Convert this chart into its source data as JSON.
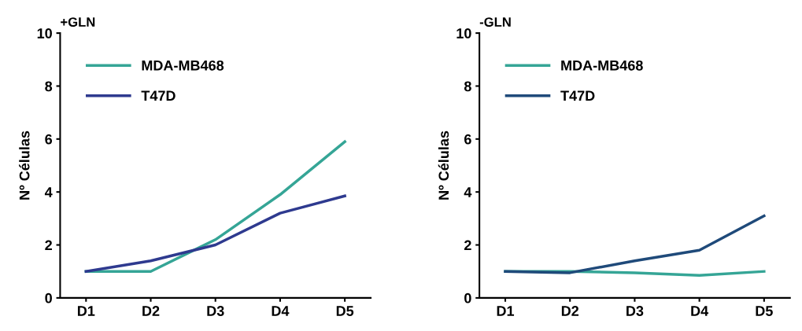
{
  "chart_data": [
    {
      "type": "line",
      "title": "+GLN",
      "ylabel": "Nº Células",
      "categories": [
        "D1",
        "D2",
        "D3",
        "D4",
        "D5"
      ],
      "ylim": [
        0,
        10
      ],
      "yticks": [
        0,
        2,
        4,
        6,
        8,
        10
      ],
      "grid": false,
      "legend": "top left",
      "series": [
        {
          "name": "MDA-MB468",
          "color": "#35a596",
          "values": [
            1.0,
            1.0,
            2.2,
            3.9,
            5.9
          ]
        },
        {
          "name": "T47D",
          "color": "#2e3a8f",
          "values": [
            1.0,
            1.4,
            2.0,
            3.2,
            3.85
          ]
        }
      ]
    },
    {
      "type": "line",
      "title": "-GLN",
      "ylabel": "Nº Células",
      "categories": [
        "D1",
        "D2",
        "D3",
        "D4",
        "D5"
      ],
      "ylim": [
        0,
        10
      ],
      "yticks": [
        0,
        2,
        4,
        6,
        8,
        10
      ],
      "grid": false,
      "legend": "top left",
      "series": [
        {
          "name": "MDA-MB468",
          "color": "#35a596",
          "values": [
            1.0,
            1.0,
            0.95,
            0.85,
            1.0
          ]
        },
        {
          "name": "T47D",
          "color": "#1f4a7a",
          "values": [
            1.0,
            0.95,
            1.4,
            1.8,
            3.1
          ]
        }
      ]
    }
  ]
}
